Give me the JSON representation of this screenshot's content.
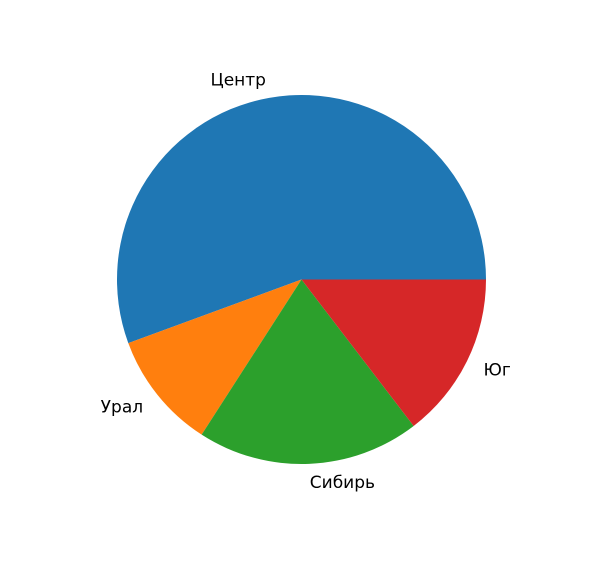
{
  "figure": {
    "background_color": "#ffffff"
  },
  "chart_data": {
    "type": "pie",
    "title": "",
    "labels": [
      "Центр",
      "Урал",
      "Сибирь",
      "Юг"
    ],
    "values": [
      55.6,
      10.3,
      19.5,
      14.6
    ],
    "colors": [
      "#1f77b4",
      "#ff7f0e",
      "#2ca02c",
      "#d62728"
    ],
    "text_color": "#000000",
    "start_angle_deg": 0,
    "direction": "counterclockwise",
    "label_distance": 1.1,
    "legend": "none",
    "data_labels": "none"
  }
}
